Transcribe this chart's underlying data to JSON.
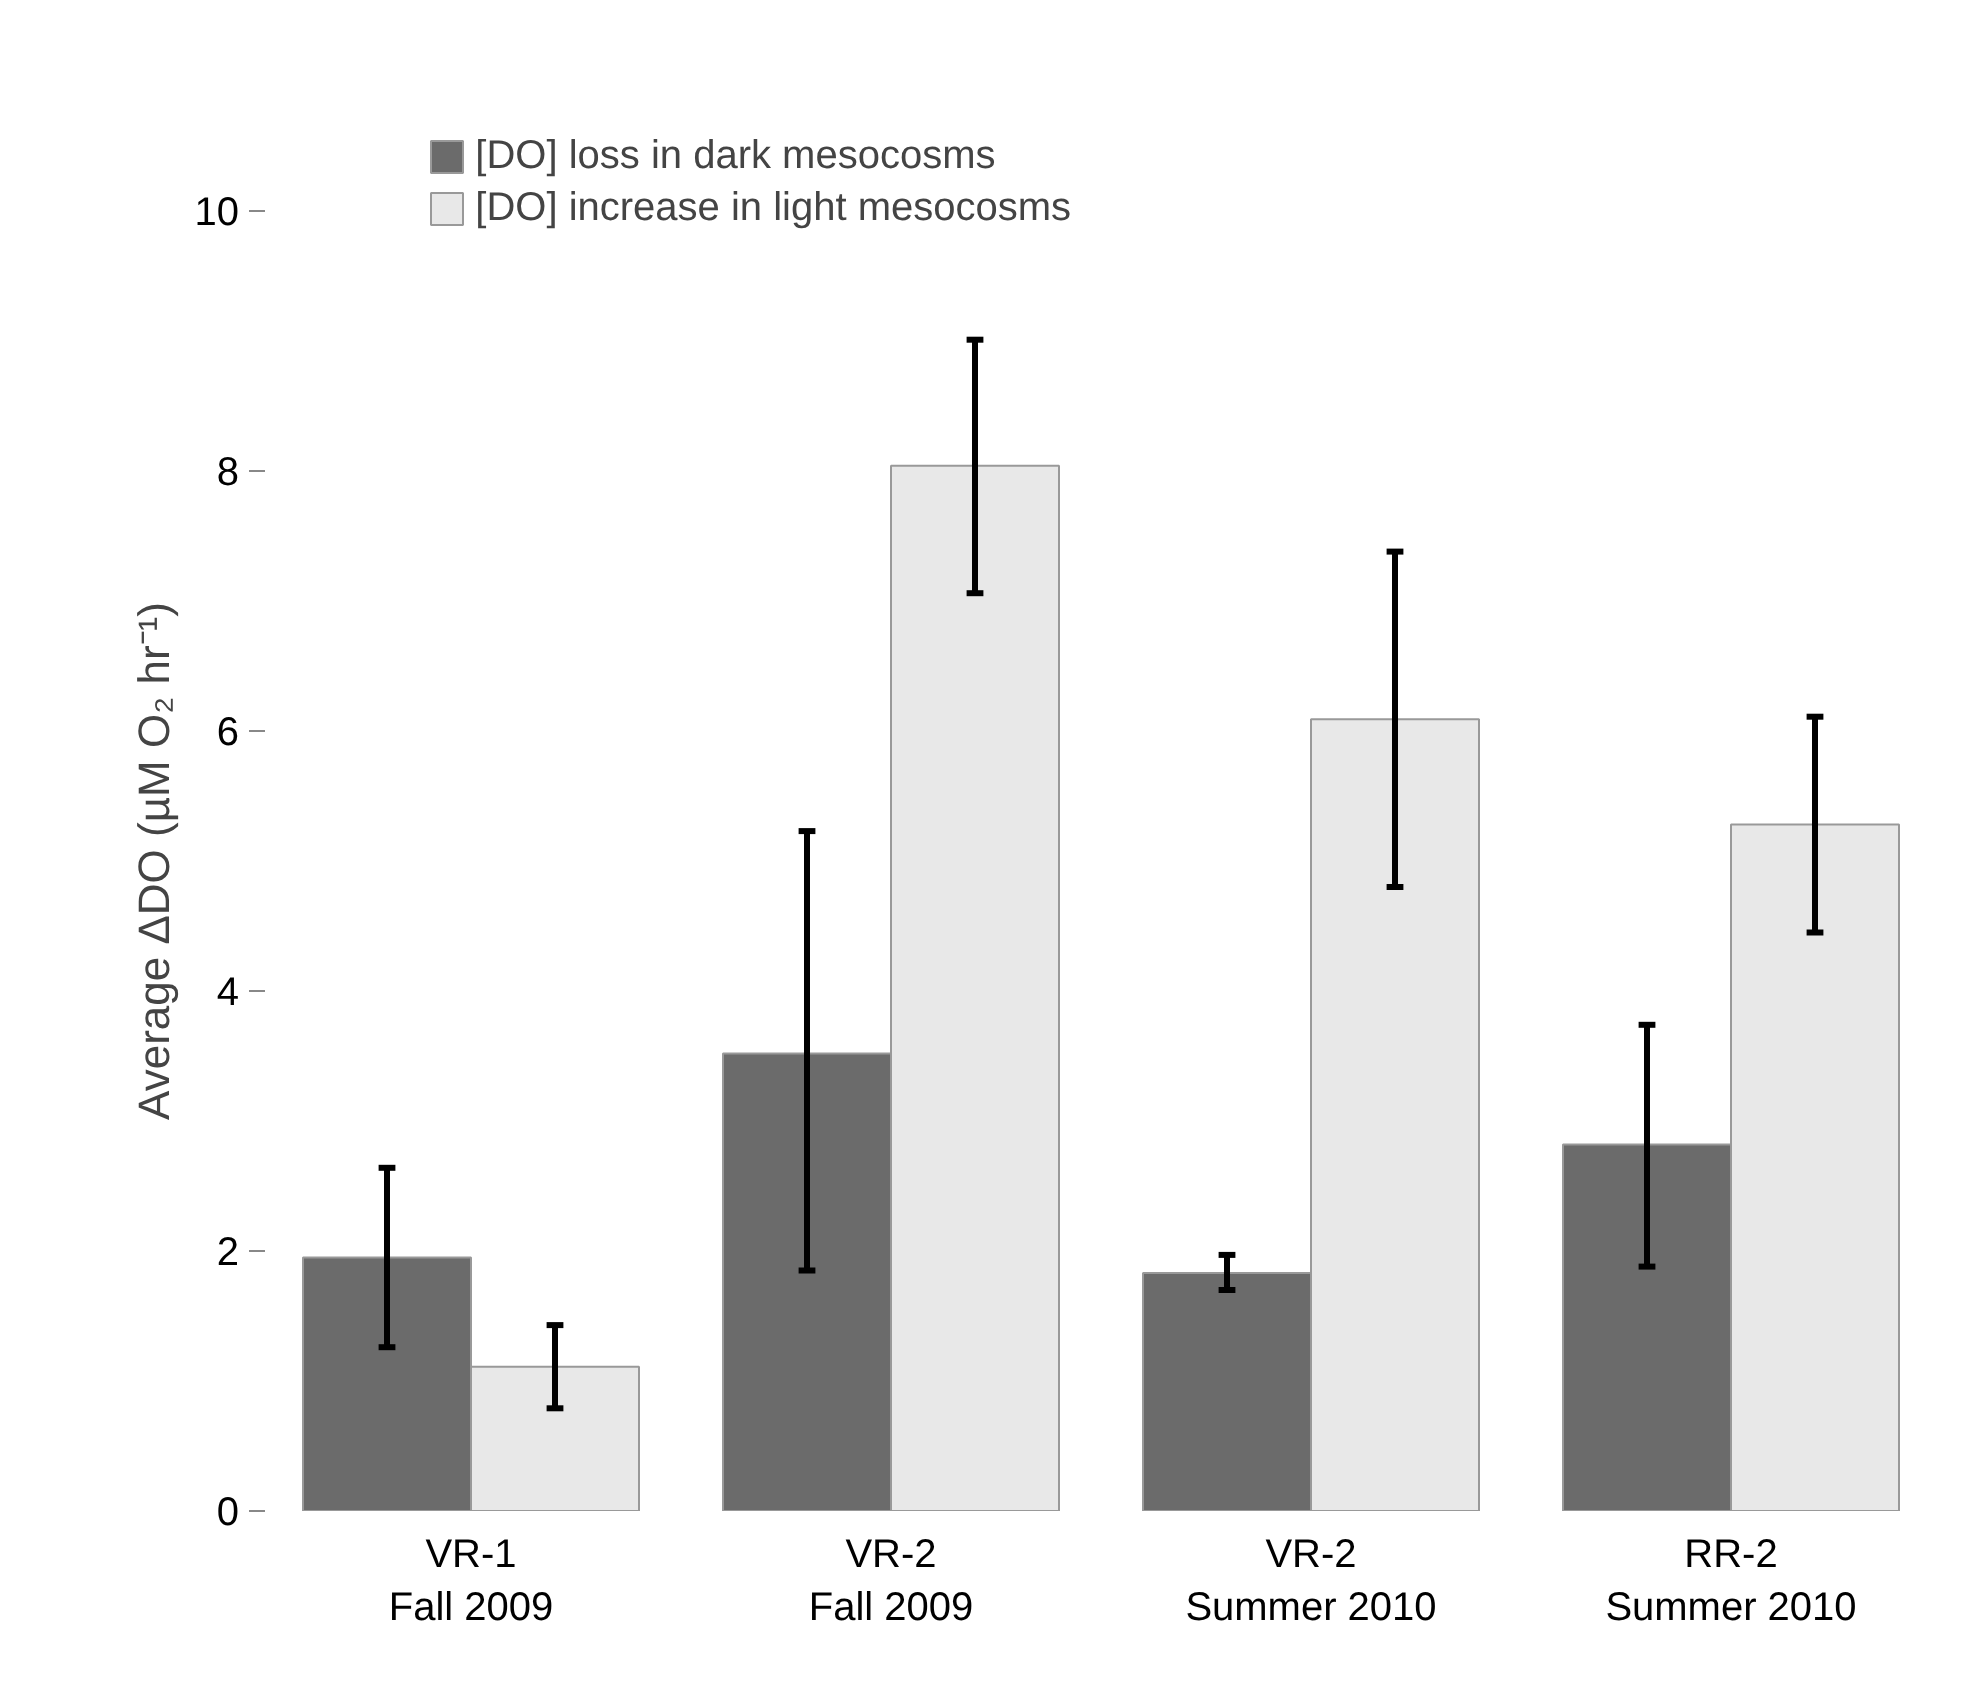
{
  "chart_data": {
    "type": "bar",
    "ylabel": "Average ΔDO (µM O₂ hr⁻¹)",
    "categories": [
      "VR-1\nFall 2009",
      "VR-2\nFall 2009",
      "VR-2\nSummer 2010",
      "RR-2\nSummer 2010"
    ],
    "series": [
      {
        "name": "[DO] loss in dark mesocosms",
        "color": "#6b6b6b",
        "values": [
          1.95,
          3.52,
          1.83,
          2.82
        ],
        "errors": [
          [
            1.26,
            2.64
          ],
          [
            1.85,
            5.23
          ],
          [
            1.7,
            1.97
          ],
          [
            1.88,
            3.74
          ]
        ]
      },
      {
        "name": "[DO] increase in light mesocosms",
        "color": "#e8e8e8",
        "values": [
          1.11,
          8.04,
          6.09,
          5.28
        ],
        "errors": [
          [
            0.79,
            1.43
          ],
          [
            7.06,
            9.01
          ],
          [
            4.8,
            7.38
          ],
          [
            4.45,
            6.11
          ]
        ]
      }
    ],
    "ylim": [
      0,
      10
    ],
    "yticks": [
      0,
      2,
      4,
      6,
      8,
      10
    ],
    "grid": false,
    "legend": "top"
  }
}
